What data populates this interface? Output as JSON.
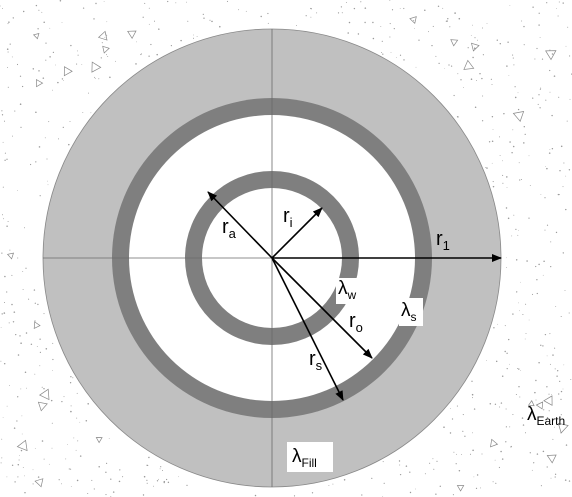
{
  "labels": {
    "r_a": {
      "base": "r",
      "sub": "a"
    },
    "r_i": {
      "base": "r",
      "sub": "i"
    },
    "r_1": {
      "base": "r",
      "sub": "1"
    },
    "r_o": {
      "base": "r",
      "sub": "o"
    },
    "r_s": {
      "base": "r",
      "sub": "s"
    },
    "lambda_w": {
      "base": "λ",
      "sub": "w"
    },
    "lambda_s": {
      "base": "λ",
      "sub": "s"
    },
    "lambda_fill": {
      "base": "λ",
      "sub": "Fill"
    },
    "lambda_earth": {
      "base": "λ",
      "sub": "Earth"
    }
  },
  "colors": {
    "earth_bg": "#ffffff",
    "earth_dots": "#9a9a9a",
    "fill_ring": "#c0c0c0",
    "pipe_wall": "#7f7f7f",
    "interior": "#ffffff",
    "axis_line": "#6a6a6a",
    "arrow": "#000000"
  }
}
